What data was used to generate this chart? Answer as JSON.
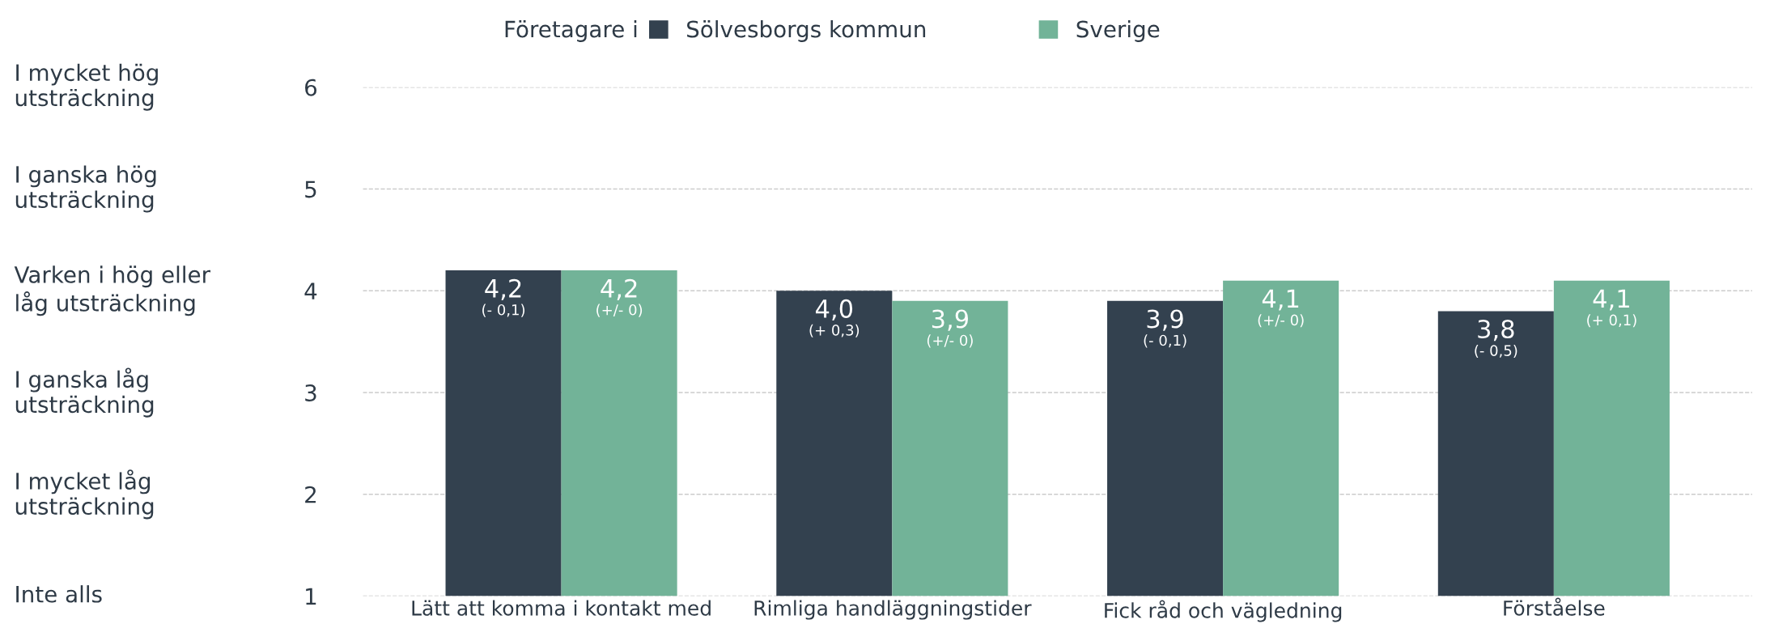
{
  "chart_data": {
    "type": "bar",
    "legend_title": "Företagare i",
    "legend": "top",
    "categories": [
      "Lätt att komma i kontakt med",
      "Rimliga handläggningstider",
      "Fick råd och vägledning",
      "Förståelse"
    ],
    "series": [
      {
        "name": "Sölvesborgs kommun",
        "color": "#33414f",
        "values": [
          4.2,
          4.0,
          3.9,
          3.8
        ],
        "value_labels": [
          "4,2\n(- 0,1)",
          "4,0\n(+ 0,3)",
          "3,9\n(- 0,1)",
          "3,8\n(- 0,5)"
        ]
      },
      {
        "name": "Sverige",
        "color": "#72b398",
        "values": [
          4.2,
          3.9,
          4.1,
          4.1
        ],
        "value_labels": [
          "4,2\n(+/- 0)",
          "3,9\n(+/- 0)",
          "4,1\n(+/- 0)",
          "4,1\n(+ 0,1)"
        ]
      }
    ],
    "ylim": [
      1,
      6
    ],
    "yticks": [
      1,
      2,
      3,
      4,
      5,
      6
    ],
    "annotations": [
      "I mycket hög\nutsträckning",
      "I ganska hög\nutsträckning",
      "Varken i hög eller\nlåg utsträckning",
      "I ganska låg\nutsträckning",
      "I mycket låg\nutsträckning",
      "Inte alls"
    ],
    "grid": "y"
  }
}
